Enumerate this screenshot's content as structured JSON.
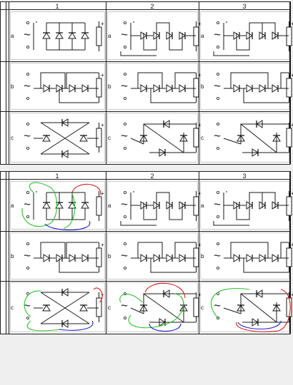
{
  "columns": [
    "1",
    "2",
    "3"
  ],
  "rows": [
    "a",
    "b",
    "c"
  ],
  "plus_sign": "+",
  "ac_symbol": "~",
  "panels": [
    {
      "name": "rectifier-grid-unmarked",
      "cells": {
        "a": [
          "a-straight-4",
          "a-wave-4",
          "a-wave-4-alt"
        ],
        "b": [
          "b-bridge-loop",
          "b-bridge-return",
          "b-bridge-cross"
        ],
        "c": [
          "c-x-bridge",
          "c-diagonal",
          "c-diagonal-alt"
        ]
      },
      "highlights": false
    },
    {
      "name": "rectifier-grid-annotated",
      "cells": {
        "a": [
          "a-straight-4",
          "a-wave-4",
          "a-wave-4-alt"
        ],
        "b": [
          "b-bridge-loop",
          "b-bridge-return",
          "b-bridge-cross"
        ],
        "c": [
          "c-x-bridge",
          "c-diagonal",
          "c-diagonal-alt"
        ]
      },
      "highlights": true,
      "highlight_colors": {
        "red": "#d42020",
        "green": "#2fc02f",
        "blue": "#2424c8"
      }
    }
  ]
}
